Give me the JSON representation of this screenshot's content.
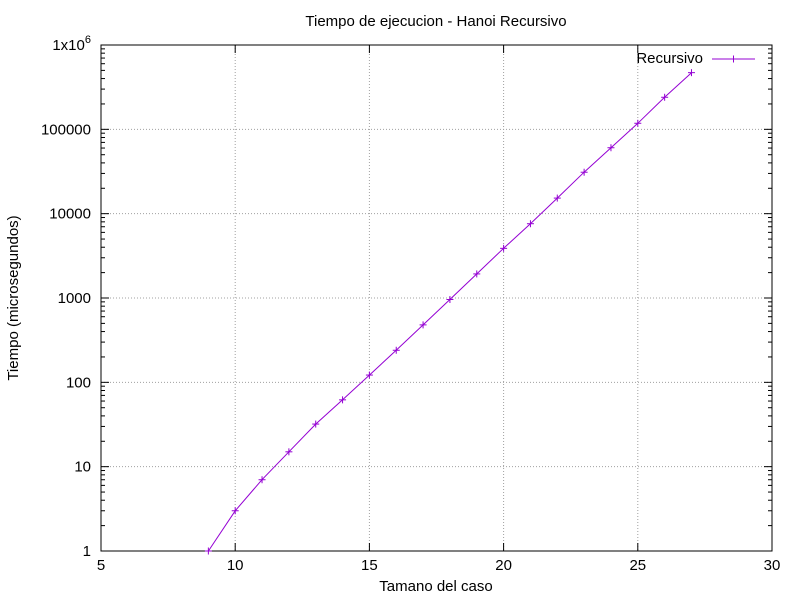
{
  "chart_data": {
    "type": "line",
    "title": "Tiempo de ejecucion - Hanoi Recursivo",
    "xlabel": "Tamano del caso",
    "ylabel": "Tiempo (microsegundos)",
    "xlim": [
      5,
      30
    ],
    "ylim": [
      1,
      1000000
    ],
    "y_scale": "log",
    "grid": true,
    "legend_position": "top-right",
    "x_ticks": [
      5,
      10,
      15,
      20,
      25,
      30
    ],
    "x_tick_labels": [
      "5",
      "10",
      "15",
      "20",
      "25",
      "30"
    ],
    "y_ticks": [
      1,
      10,
      100,
      1000,
      10000,
      100000,
      1000000
    ],
    "y_tick_labels": [
      "1",
      "10",
      "100",
      "1000",
      "10000",
      "100000",
      "1x10"
    ],
    "y_top_exponent": "6",
    "series": [
      {
        "name": "Recursivo",
        "color": "#9400d3",
        "x": [
          9,
          10,
          11,
          12,
          13,
          14,
          15,
          16,
          17,
          18,
          19,
          20,
          21,
          22,
          23,
          24,
          25,
          26,
          27
        ],
        "y": [
          1,
          3,
          7,
          15,
          32,
          62,
          122,
          240,
          480,
          960,
          1930,
          3880,
          7600,
          15300,
          31000,
          60500,
          118000,
          240000,
          470000
        ]
      }
    ]
  }
}
